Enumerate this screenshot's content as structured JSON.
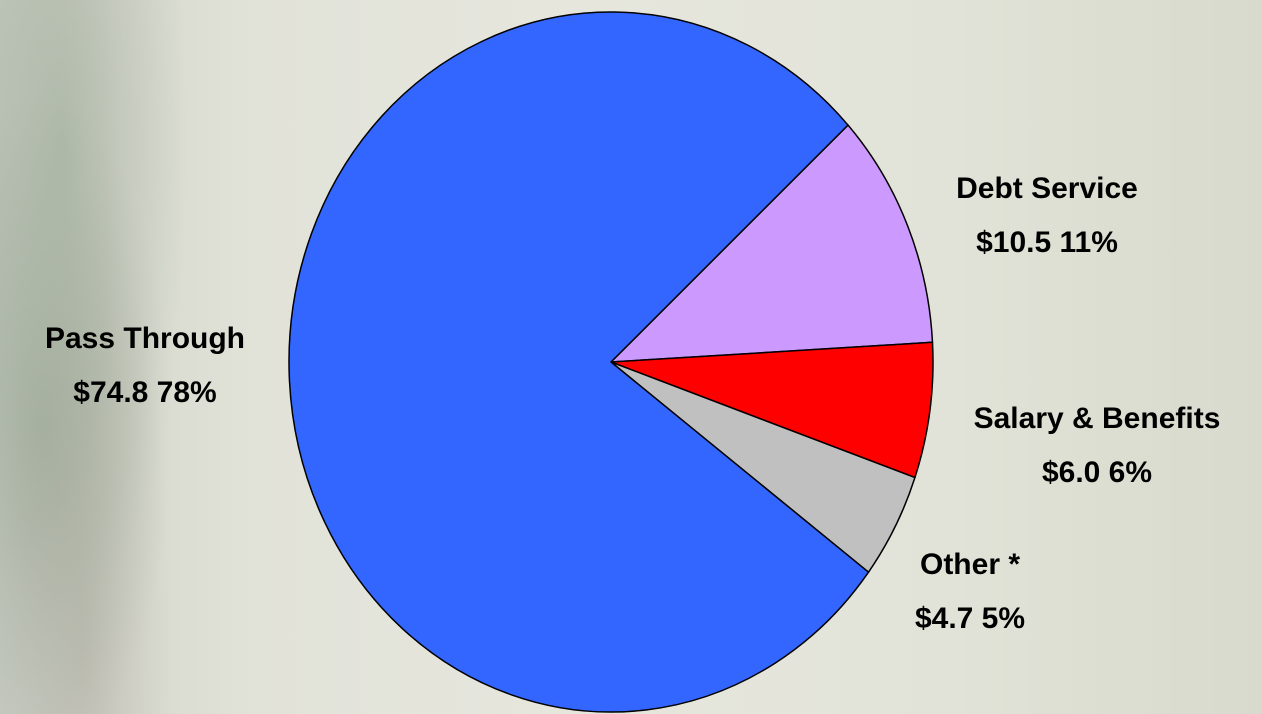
{
  "chart_data": {
    "type": "pie",
    "start_angle_deg": -42.6,
    "direction": "clockwise",
    "slices": [
      {
        "name": "Debt Service",
        "label": "Debt Service",
        "value_label": "$10.5  11%",
        "value": 10.5,
        "percent": 11,
        "color": "#cc99ff"
      },
      {
        "name": "Salary & Benefits",
        "label": "Salary & Benefits",
        "value_label": "$6.0  6%",
        "value": 6.0,
        "percent": 6,
        "color": "#ff0000"
      },
      {
        "name": "Other",
        "label": "Other *",
        "value_label": "$4.7  5%",
        "value": 4.7,
        "percent": 5,
        "color": "#c0c0c0"
      },
      {
        "name": "Pass Through",
        "label": "Pass Through",
        "value_label": "$74.8  78%",
        "value": 74.8,
        "percent": 78,
        "color": "#3366ff"
      }
    ]
  }
}
